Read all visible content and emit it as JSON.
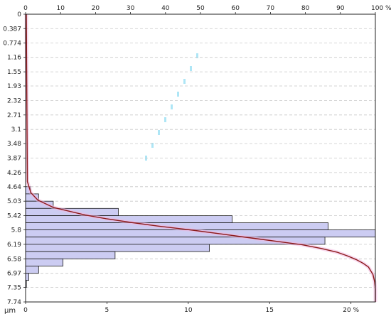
{
  "chart_data": {
    "type": "bar",
    "orientation": "horizontal",
    "y_unit_label": "µm",
    "top_axis": {
      "ticks": [
        "0",
        "10",
        "20",
        "30",
        "40",
        "50",
        "60",
        "70",
        "80",
        "90",
        "100 %"
      ],
      "range": [
        0,
        100
      ]
    },
    "bottom_axis": {
      "ticks": [
        "0",
        "5",
        "10",
        "15",
        "20 %"
      ],
      "range": [
        0,
        21.5
      ]
    },
    "y_ticks": [
      "0",
      "0.387",
      "0.774",
      "1.16",
      "1.55",
      "1.93",
      "2.32",
      "2.71",
      "3.1",
      "3.48",
      "3.87",
      "4.26",
      "4.64",
      "5.03",
      "5.42",
      "5.8",
      "6.19",
      "6.58",
      "6.97",
      "7.35",
      "7.74"
    ],
    "y_range": [
      0,
      7.74
    ],
    "grid": true,
    "bars": [
      {
        "y0": 4.64,
        "y1": 4.833,
        "value": 0.3
      },
      {
        "y0": 4.833,
        "y1": 5.03,
        "value": 0.8
      },
      {
        "y0": 5.03,
        "y1": 5.223,
        "value": 1.7
      },
      {
        "y0": 5.223,
        "y1": 5.42,
        "value": 5.7
      },
      {
        "y0": 5.42,
        "y1": 5.61,
        "value": 12.7
      },
      {
        "y0": 5.61,
        "y1": 5.8,
        "value": 18.6
      },
      {
        "y0": 5.8,
        "y1": 5.995,
        "value": 21.5
      },
      {
        "y0": 5.995,
        "y1": 6.19,
        "value": 18.4
      },
      {
        "y0": 6.19,
        "y1": 6.385,
        "value": 11.3
      },
      {
        "y0": 6.385,
        "y1": 6.58,
        "value": 5.5
      },
      {
        "y0": 6.58,
        "y1": 6.775,
        "value": 2.3
      },
      {
        "y0": 6.775,
        "y1": 6.97,
        "value": 0.8
      },
      {
        "y0": 6.97,
        "y1": 7.16,
        "value": 0.2
      },
      {
        "y0": 7.16,
        "y1": 7.35,
        "value": 0.05
      }
    ],
    "cumulative_curve": {
      "name": "cumulative %",
      "color": "#8b1a1a",
      "y": [
        0,
        4.5,
        4.8,
        5.0,
        5.2,
        5.4,
        5.5,
        5.6,
        5.7,
        5.8,
        5.9,
        6.0,
        6.1,
        6.2,
        6.3,
        6.4,
        6.5,
        6.6,
        6.7,
        6.8,
        7.0,
        7.2,
        7.4,
        7.74
      ],
      "percent": [
        0.2,
        0.5,
        1.5,
        3.5,
        8,
        17,
        23,
        30,
        38,
        47,
        55,
        63,
        71,
        79,
        84.5,
        89,
        92,
        94.5,
        96.5,
        98,
        99.3,
        99.8,
        100,
        100
      ]
    },
    "colors": {
      "bar_fill": "#ccccf2",
      "bar_stroke": "#1a1a1a",
      "grid": "#c8c8c8",
      "curve": "#8b1a1a",
      "curve_halo": "#f2b8e0"
    }
  }
}
